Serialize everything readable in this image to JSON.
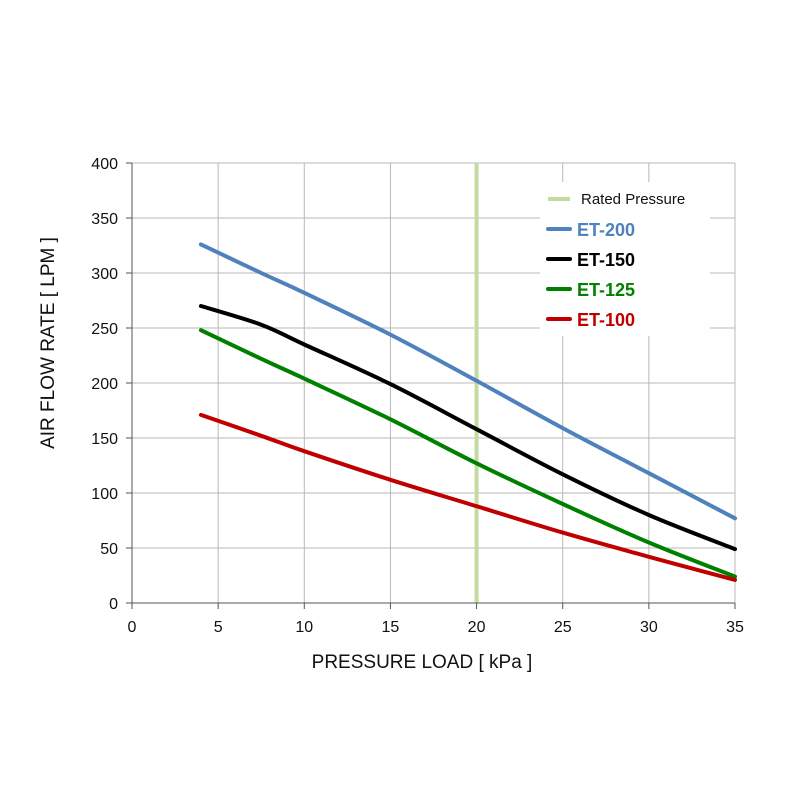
{
  "chart_data": {
    "type": "line",
    "title": "",
    "xlabel": "PRESSURE LOAD [ kPa ]",
    "ylabel": "AIR FLOW RATE [ LPM ]",
    "xlim": [
      0,
      35
    ],
    "ylim": [
      0,
      400
    ],
    "xticks": [
      0,
      5,
      10,
      15,
      20,
      25,
      30,
      35
    ],
    "yticks": [
      0,
      50,
      100,
      150,
      200,
      250,
      300,
      350,
      400
    ],
    "grid": true,
    "legend_position": "top-right",
    "reference_line": {
      "name": "Rated Pressure",
      "x": 20,
      "color": "#c4dba0"
    },
    "series": [
      {
        "name": "ET-200",
        "color": "#4f81bd",
        "x": [
          4,
          7.5,
          10,
          15,
          20,
          25,
          30,
          35
        ],
        "y": [
          326,
          300,
          282,
          244,
          202,
          159,
          118,
          77
        ]
      },
      {
        "name": "ET-150",
        "color": "#000000",
        "x": [
          4,
          7.5,
          10,
          15,
          20,
          25,
          30,
          35
        ],
        "y": [
          270,
          253,
          235,
          199,
          158,
          117,
          80,
          49
        ]
      },
      {
        "name": "ET-125",
        "color": "#008000",
        "x": [
          4,
          7.5,
          10,
          15,
          20,
          25,
          30,
          35
        ],
        "y": [
          248,
          222,
          204,
          167,
          127,
          90,
          55,
          24
        ]
      },
      {
        "name": "ET-100",
        "color": "#c00000",
        "x": [
          4,
          7.5,
          10,
          15,
          20,
          25,
          30,
          35
        ],
        "y": [
          171,
          152,
          138,
          112,
          88,
          64,
          42,
          21
        ]
      }
    ]
  }
}
